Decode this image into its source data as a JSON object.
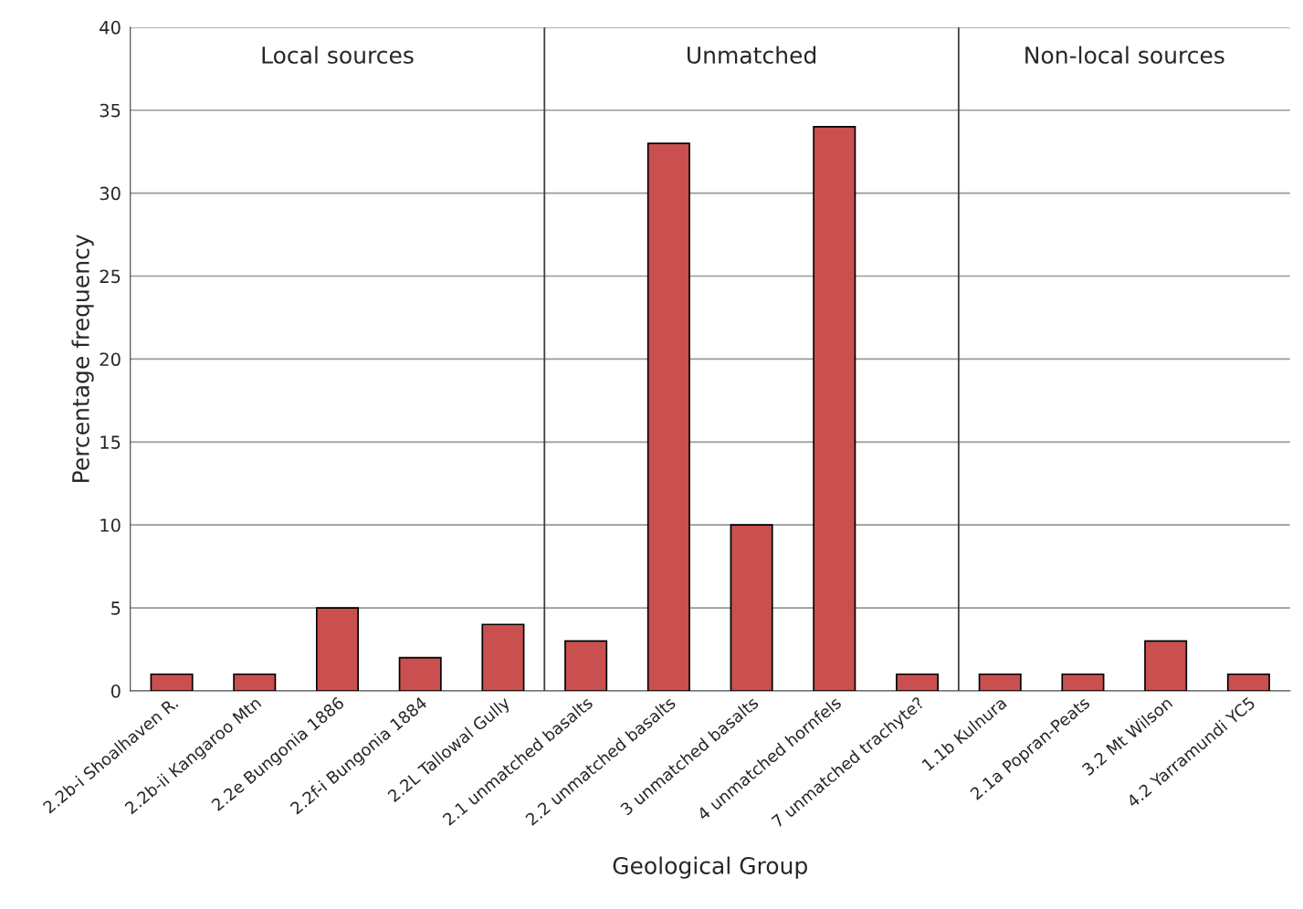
{
  "chart_data": {
    "type": "bar",
    "xlabel": "Geological Group",
    "ylabel": "Percentage frequency",
    "categories": [
      "2.2b-i Shoalhaven R.",
      "2.2b-ii Kangaroo Mtn",
      "2.2e Bungonia 1886",
      "2.2f-i Bungonia 1884",
      "2.2L Tallowal Gully",
      "2.1 unmatched basalts",
      "2.2 unmatched basalts",
      "3 unmatched basalts",
      "4 unmatched hornfels",
      "7 unmatched trachyte?",
      "1.1b Kulnura",
      "2.1a Popran-Peats",
      "3.2 Mt Wilson",
      "4.2 Yarramundi YC5"
    ],
    "values": [
      1,
      1,
      5,
      2,
      4,
      3,
      33,
      10,
      34,
      1,
      1,
      1,
      3,
      1
    ],
    "color": "#c9504f",
    "ylim": [
      0,
      40
    ],
    "yticks": [
      0,
      5,
      10,
      15,
      20,
      25,
      30,
      35,
      40
    ],
    "grid": "y",
    "annotations": [
      "Local sources",
      "Unmatched",
      "Non-local sources"
    ]
  }
}
